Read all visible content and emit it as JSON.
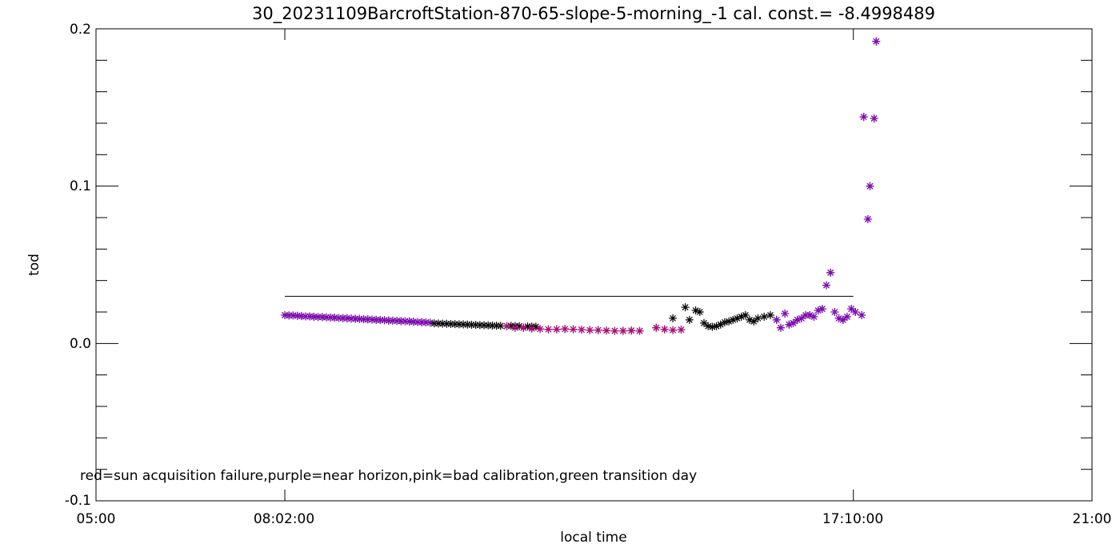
{
  "chart_data": {
    "type": "scatter",
    "title": "30_20231109BarcroftStation-870-65-slope-5-morning_-1 cal. const.= -8.4998489",
    "xlabel": "local time",
    "ylabel": "tod",
    "xlim": [
      "05:00",
      "21:00"
    ],
    "ylim": [
      -0.1,
      0.2
    ],
    "x_ticks": [
      "05:00",
      "08:02:00",
      "17:10:00",
      "21:00"
    ],
    "y_ticks": [
      "-0.1",
      "0.0",
      "0.1",
      "0.2"
    ],
    "legend_text": "red=sun acquisition failure,purple=near horizon,pink=bad calibration,green transition day",
    "marker": "asterisk",
    "colors": {
      "normal": "#000000",
      "near_horizon": "#9400d3",
      "bad_calibration": "#c8008c"
    },
    "reference_line": {
      "x": [
        "08:02:00",
        "17:10:00"
      ],
      "y": 0.03
    },
    "series": [
      {
        "category": "near_horizon",
        "x": [
          "08:02",
          "08:06",
          "08:10",
          "08:14",
          "08:18",
          "08:22",
          "08:26",
          "08:30",
          "08:34",
          "08:38",
          "08:42",
          "08:46",
          "08:50",
          "08:54",
          "08:58",
          "09:02",
          "09:06",
          "09:10",
          "09:14",
          "09:18",
          "09:22",
          "09:26",
          "09:30",
          "09:34",
          "09:38",
          "09:42",
          "09:46",
          "09:50",
          "09:54",
          "09:58",
          "10:02",
          "10:06",
          "10:10",
          "10:14",
          "10:18",
          "10:22"
        ],
        "y": [
          0.018,
          0.0178,
          0.0178,
          0.0176,
          0.0174,
          0.0172,
          0.0172,
          0.017,
          0.0168,
          0.0168,
          0.0166,
          0.0165,
          0.0164,
          0.0162,
          0.0161,
          0.016,
          0.0158,
          0.0157,
          0.0156,
          0.0154,
          0.0153,
          0.0152,
          0.015,
          0.0149,
          0.0148,
          0.0146,
          0.0145,
          0.0144,
          0.0142,
          0.0141,
          0.014,
          0.0138,
          0.0136,
          0.0135,
          0.0134,
          0.0132
        ]
      },
      {
        "category": "normal",
        "x": [
          "10:26",
          "10:30",
          "10:34",
          "10:38",
          "10:42",
          "10:46",
          "10:50",
          "10:54",
          "10:58",
          "11:02",
          "11:06",
          "11:10",
          "11:14",
          "11:18",
          "11:22",
          "11:26",
          "11:30",
          "11:40",
          "11:44",
          "11:48",
          "11:56",
          "12:00",
          "12:04",
          "14:16",
          "14:28",
          "14:32",
          "14:38",
          "14:42",
          "14:46",
          "14:50",
          "14:54",
          "14:58",
          "15:02",
          "15:06",
          "15:10",
          "15:14",
          "15:18",
          "15:22",
          "15:26",
          "15:30",
          "15:34",
          "15:38",
          "15:44",
          "15:50"
        ],
        "y": [
          0.0128,
          0.0127,
          0.0126,
          0.0125,
          0.0124,
          0.0123,
          0.0122,
          0.0121,
          0.012,
          0.0119,
          0.0118,
          0.0117,
          0.0116,
          0.0115,
          0.0114,
          0.0113,
          0.0112,
          0.0112,
          0.0111,
          0.011,
          0.0108,
          0.0107,
          0.0107,
          0.016,
          0.023,
          0.015,
          0.021,
          0.02,
          0.013,
          0.011,
          0.0105,
          0.011,
          0.012,
          0.0135,
          0.014,
          0.015,
          0.016,
          0.017,
          0.018,
          0.015,
          0.014,
          0.016,
          0.017,
          0.018
        ]
      },
      {
        "category": "bad_calibration",
        "x": [
          "11:36",
          "11:44",
          "11:52",
          "12:00",
          "12:08",
          "12:16",
          "12:24",
          "12:32",
          "12:40",
          "12:48",
          "12:56",
          "13:04",
          "13:12",
          "13:20",
          "13:28",
          "13:36",
          "13:44",
          "14:00",
          "14:08",
          "14:16",
          "14:24"
        ],
        "y": [
          0.011,
          0.01,
          0.01,
          0.0095,
          0.0092,
          0.009,
          0.009,
          0.0092,
          0.009,
          0.0088,
          0.0085,
          0.0085,
          0.0082,
          0.008,
          0.008,
          0.0082,
          0.008,
          0.01,
          0.009,
          0.0085,
          0.0088
        ]
      },
      {
        "category": "near_horizon",
        "x": [
          "15:56",
          "16:00",
          "16:04",
          "16:08",
          "16:12",
          "16:16",
          "16:20",
          "16:24",
          "16:28",
          "16:32",
          "16:36",
          "16:40",
          "16:44",
          "16:48",
          "16:52",
          "16:56",
          "17:00",
          "17:04",
          "17:08",
          "17:12",
          "17:18"
        ],
        "y": [
          0.015,
          0.01,
          0.019,
          0.012,
          0.013,
          0.015,
          0.016,
          0.018,
          0.018,
          0.017,
          0.021,
          0.022,
          0.037,
          0.045,
          0.02,
          0.016,
          0.015,
          0.017,
          0.022,
          0.02,
          0.018
        ]
      },
      {
        "category": "near_horizon",
        "x": [
          "17:20",
          "17:24",
          "17:26",
          "17:30",
          "17:32"
        ],
        "y": [
          0.144,
          0.079,
          0.1,
          0.143,
          0.192
        ]
      }
    ]
  }
}
